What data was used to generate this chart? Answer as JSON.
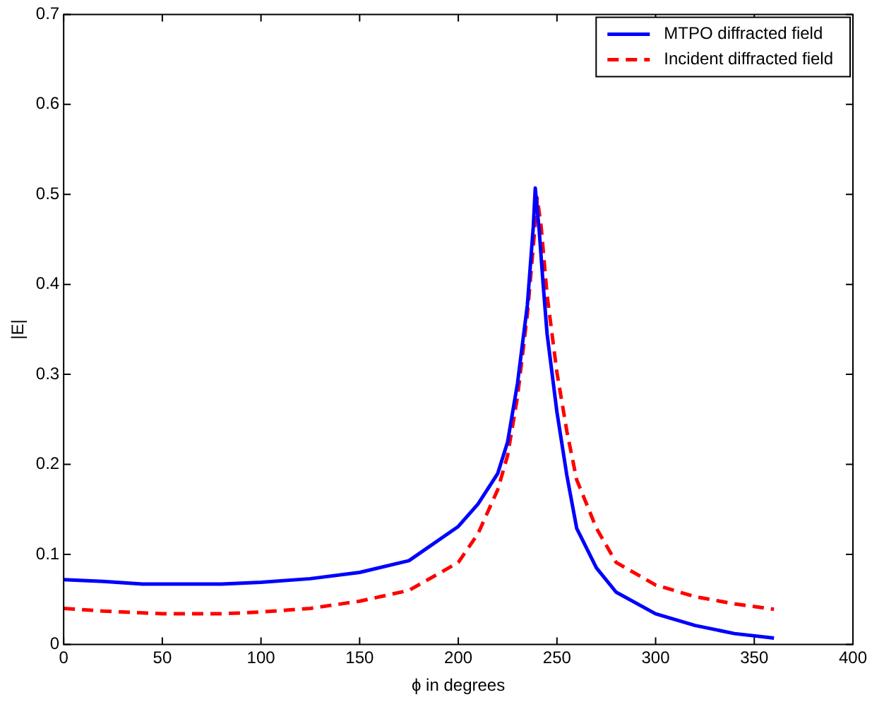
{
  "chart_data": {
    "type": "line",
    "xlabel": "ϕ in degrees",
    "ylabel": "|E|",
    "xlim": [
      0,
      400
    ],
    "xticks": [
      0,
      50,
      100,
      150,
      200,
      250,
      300,
      350,
      400
    ],
    "ylim": [
      0,
      0.7
    ],
    "yticks": [
      0,
      0.1,
      0.2,
      0.3,
      0.4,
      0.5,
      0.6,
      0.7
    ],
    "grid": false,
    "legend": "top right",
    "marker": "none",
    "series": [
      {
        "name": "MTPO diffracted field",
        "color": "#0000ff",
        "line_style": "solid",
        "x": [
          0,
          20,
          40,
          50,
          80,
          100,
          125,
          150,
          175,
          200,
          210,
          220,
          225,
          230,
          235,
          238,
          239,
          241,
          243,
          245,
          250,
          255,
          260,
          270,
          280,
          300,
          320,
          340,
          360
        ],
        "values": [
          0.072,
          0.07,
          0.067,
          0.067,
          0.067,
          0.069,
          0.073,
          0.08,
          0.093,
          0.131,
          0.156,
          0.19,
          0.225,
          0.29,
          0.377,
          0.464,
          0.507,
          0.46,
          0.4,
          0.345,
          0.258,
          0.188,
          0.129,
          0.085,
          0.058,
          0.034,
          0.021,
          0.012,
          0.007
        ]
      },
      {
        "name": "Incident diffracted field",
        "color": "#ff0000",
        "line_style": "dashed",
        "x": [
          0,
          20,
          40,
          50,
          80,
          100,
          125,
          150,
          175,
          200,
          210,
          220,
          225,
          230,
          235,
          238,
          240,
          242,
          245,
          250,
          255,
          260,
          270,
          280,
          300,
          320,
          340,
          360
        ],
        "values": [
          0.04,
          0.037,
          0.035,
          0.034,
          0.034,
          0.036,
          0.04,
          0.048,
          0.06,
          0.091,
          0.123,
          0.172,
          0.21,
          0.275,
          0.367,
          0.442,
          0.496,
          0.464,
          0.388,
          0.302,
          0.237,
          0.183,
          0.129,
          0.091,
          0.066,
          0.053,
          0.045,
          0.039
        ]
      }
    ]
  }
}
